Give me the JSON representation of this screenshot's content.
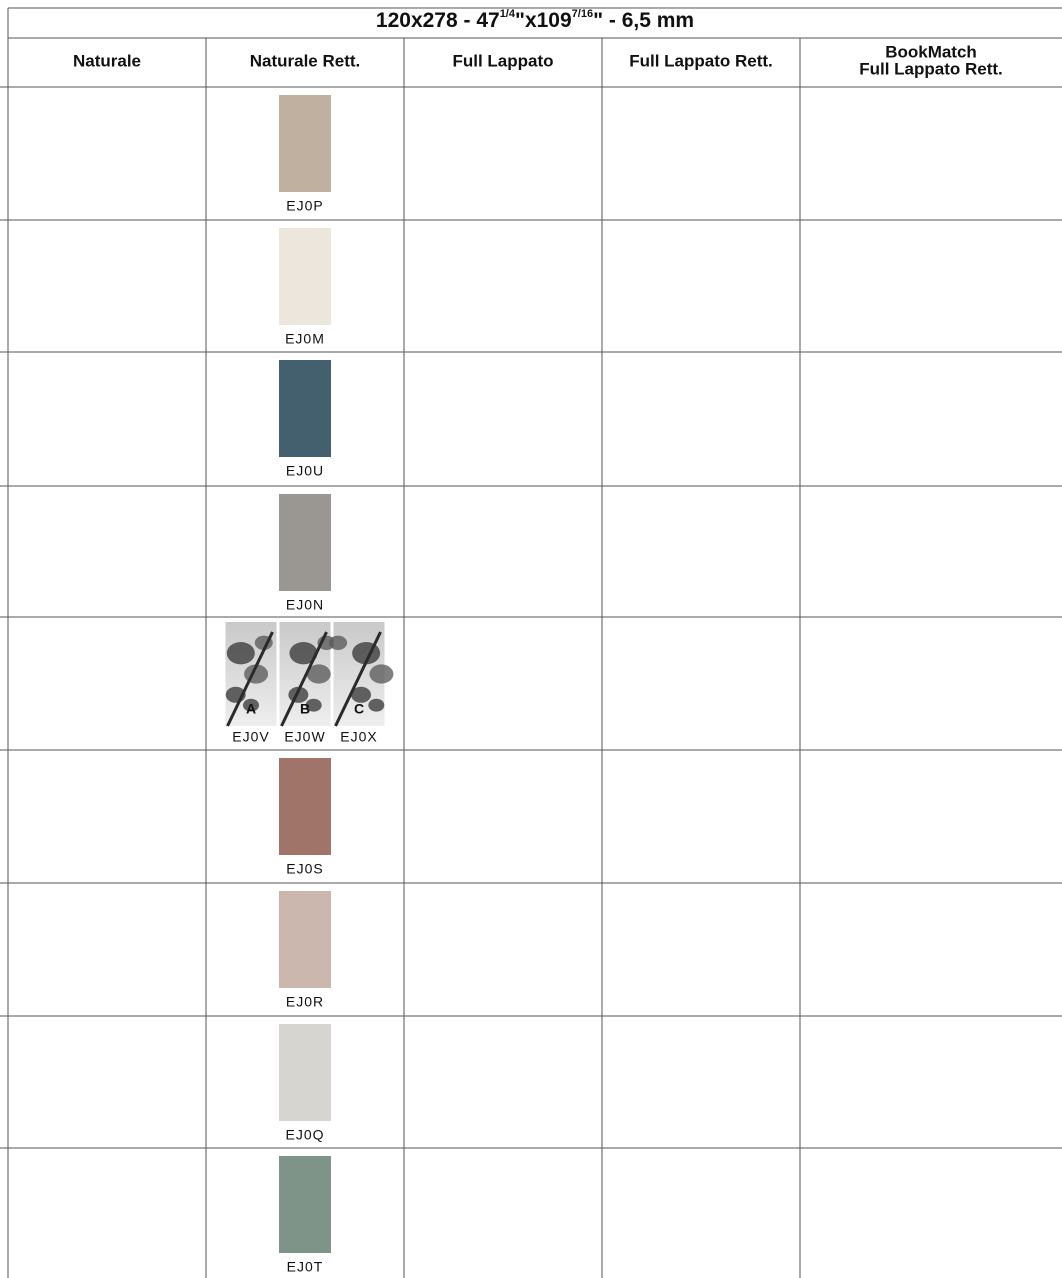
{
  "header": {
    "title": [
      "120x278 - 47",
      "1/4",
      "\"x109",
      "7/16",
      "\"  - 6,5 mm"
    ]
  },
  "columns": [
    "Naturale",
    "Naturale Rett.",
    "Full Lappato",
    "Full Lappato Rett.",
    "BookMatch\nFull Lappato Rett."
  ],
  "rows": [
    {
      "swatches": [
        {
          "code": "EJ0P",
          "color": "#bfb09f"
        }
      ]
    },
    {
      "swatches": [
        {
          "code": "EJ0M",
          "color": "#ece6dc"
        }
      ]
    },
    {
      "swatches": [
        {
          "code": "EJ0U",
          "color": "#44606e"
        }
      ]
    },
    {
      "swatches": [
        {
          "code": "EJ0N",
          "color": "#9a9793"
        }
      ]
    },
    {
      "swatches": [
        {
          "code": "EJ0V",
          "label": "A"
        },
        {
          "code": "EJ0W",
          "label": "B"
        },
        {
          "code": "EJ0X",
          "label": "C"
        }
      ]
    },
    {
      "swatches": [
        {
          "code": "EJ0S",
          "color": "#a07468"
        }
      ]
    },
    {
      "swatches": [
        {
          "code": "EJ0R",
          "color": "#cbb7ae"
        }
      ]
    },
    {
      "swatches": [
        {
          "code": "EJ0Q",
          "color": "#d7d5cf"
        }
      ]
    },
    {
      "swatches": [
        {
          "code": "EJ0T",
          "color": "#7f9488"
        }
      ]
    }
  ]
}
